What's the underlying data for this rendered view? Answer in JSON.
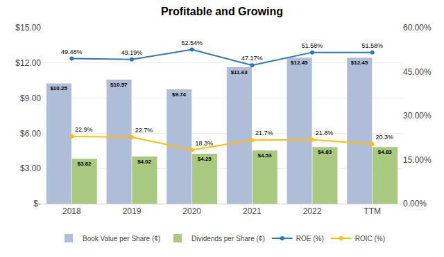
{
  "chart_data": {
    "type": "bar",
    "title": "Profitable and Growing",
    "categories": [
      "2018",
      "2019",
      "2020",
      "2021",
      "2022",
      "TTM"
    ],
    "series": [
      {
        "name": "Book Value per Share (¢)",
        "type": "bar",
        "color": "#b0bdd8",
        "values": [
          10.25,
          10.57,
          9.74,
          11.63,
          12.45,
          12.45
        ],
        "value_labels": [
          "$10.25",
          "$10.57",
          "$9.74",
          "$11.63",
          "$12.45",
          "$12.45"
        ]
      },
      {
        "name": "Dividends per Share (¢)",
        "type": "bar",
        "color": "#a8c97f",
        "values": [
          3.82,
          4.02,
          4.25,
          4.53,
          4.83,
          4.83
        ],
        "value_labels": [
          "$3.82",
          "$4.02",
          "$4.25",
          "$4.53",
          "$4.83",
          "$4.83"
        ]
      },
      {
        "name": "ROE (%)",
        "type": "line",
        "axis": "y2",
        "color": "#2e75b6",
        "marker": "circle",
        "values": [
          49.48,
          49.19,
          52.54,
          47.17,
          51.58,
          51.58
        ],
        "value_labels": [
          "49.48%",
          "49.19%",
          "52.54%",
          "47.17%",
          "51.58%",
          "51.58%"
        ]
      },
      {
        "name": "ROIC (%)",
        "type": "line",
        "axis": "y2",
        "color": "#ffc000",
        "marker": "circle",
        "values": [
          22.9,
          22.7,
          18.3,
          21.7,
          21.8,
          20.3
        ],
        "value_labels": [
          "22.9%",
          "22.7%",
          "18.3%",
          "21.7%",
          "21.8%",
          "20.3%"
        ]
      }
    ],
    "ylim": [
      0,
      15
    ],
    "yticks": [
      {
        "value": 0,
        "label": "$-"
      },
      {
        "value": 3,
        "label": "$3.00"
      },
      {
        "value": 6,
        "label": "$6.00"
      },
      {
        "value": 9,
        "label": "$9.00"
      },
      {
        "value": 12,
        "label": "$12.00"
      },
      {
        "value": 15,
        "label": "$15.00"
      }
    ],
    "y2lim": [
      0,
      60
    ],
    "y2ticks": [
      {
        "value": 0,
        "label": "0.00%"
      },
      {
        "value": 15,
        "label": "15.00%"
      },
      {
        "value": 30,
        "label": "30.00%"
      },
      {
        "value": 45,
        "label": "45.00%"
      },
      {
        "value": 60,
        "label": "60.00%"
      }
    ],
    "grid": true,
    "legend": "bottom",
    "data_labels": true
  }
}
